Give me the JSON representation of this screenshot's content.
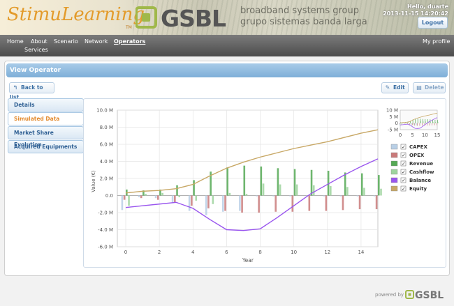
{
  "header": {
    "brand": "StimuLearning",
    "brand_tm": "TM",
    "logo": "GSBL",
    "tagline_1": "broadband systems group",
    "tagline_2": "grupo sistemas banda larga",
    "greeting": "Hello, duarte",
    "datetime": "2013-11-15 14:20:42",
    "logout_label": "Logout"
  },
  "nav": {
    "items": [
      "Home",
      "About",
      "Scenario",
      "Network",
      "Operators",
      "Services"
    ],
    "active": "Operators",
    "profile": "My profile"
  },
  "panel": {
    "title": "View Operator",
    "back_label": "Back to list",
    "edit_label": "Edit",
    "delete_label": "Delete",
    "menu": [
      "Details",
      "Simulated Data",
      "Market Share Evolution",
      "Acquired Equipments"
    ],
    "active_menu": "Simulated Data"
  },
  "colors": {
    "capex": "#b8cfe6",
    "opex": "#c97a7a",
    "revenue": "#55a955",
    "cashflow": "#9ed49e",
    "balance": "#9955ee",
    "equity": "#c8a866"
  },
  "chart_data": {
    "type": "bar",
    "xlabel": "Year",
    "ylabel": "Value (€)",
    "ylim": [
      -6.0,
      10.0
    ],
    "xlim": [
      -0.5,
      15
    ],
    "yticks": [
      "10.0 M",
      "8.0 M",
      "6.0 M",
      "4.0 M",
      "2.0 M",
      "0.0",
      "-2.0 M",
      "-4.0 M",
      "-6.0 M"
    ],
    "xticks": [
      "0",
      "2",
      "4",
      "6",
      "8",
      "10",
      "12",
      "14"
    ],
    "x": [
      0,
      1,
      2,
      3,
      4,
      5,
      6,
      7,
      8,
      9,
      10,
      11,
      12,
      13,
      14,
      15
    ],
    "series": [
      {
        "name": "CAPEX",
        "kind": "bar",
        "values": [
          -1.7,
          -0.2,
          -0.3,
          -0.9,
          -1.8,
          -2.3,
          -1.9,
          -1.8,
          -0.1,
          -0.1,
          -0.1,
          -0.1,
          -0.1,
          -0.1,
          -0.1,
          -0.1
        ]
      },
      {
        "name": "OPEX",
        "kind": "bar",
        "values": [
          -0.5,
          -0.3,
          -0.5,
          -0.8,
          -1.2,
          -1.5,
          -1.8,
          -2.0,
          -2.0,
          -1.9,
          -1.9,
          -1.8,
          -1.8,
          -1.7,
          -1.6,
          -1.6
        ]
      },
      {
        "name": "Revenue",
        "kind": "bar",
        "values": [
          0.7,
          0.6,
          0.7,
          1.2,
          1.8,
          2.8,
          3.3,
          3.5,
          3.4,
          3.2,
          3.1,
          3.0,
          2.9,
          2.7,
          2.6,
          2.4
        ]
      },
      {
        "name": "Cashflow",
        "kind": "bar",
        "values": [
          -1.2,
          0.2,
          0.3,
          -0.2,
          -0.6,
          -1.0,
          0.3,
          0.2,
          1.4,
          1.3,
          1.3,
          1.2,
          1.1,
          1.0,
          0.9,
          0.8
        ]
      },
      {
        "name": "Balance",
        "kind": "line",
        "values": [
          -1.4,
          -1.2,
          -1.0,
          -0.8,
          -1.5,
          -2.8,
          -4.0,
          -4.1,
          -3.9,
          -2.6,
          -1.2,
          0.2,
          1.3,
          2.4,
          3.4,
          4.3
        ]
      },
      {
        "name": "Equity",
        "kind": "line",
        "values": [
          0.3,
          0.5,
          0.6,
          0.8,
          1.3,
          2.3,
          3.2,
          3.9,
          4.5,
          5.0,
          5.5,
          5.9,
          6.3,
          6.8,
          7.3,
          7.7
        ]
      }
    ],
    "legend": [
      "CAPEX",
      "OPEX",
      "Revenue",
      "Cashflow",
      "Balance",
      "Equity"
    ],
    "legend_position": "right",
    "grid": true,
    "overview": {
      "yticks": [
        "10 M",
        "5 M",
        "0",
        "-5 M"
      ],
      "xticks": [
        "0",
        "5",
        "10",
        "15"
      ]
    }
  },
  "footer": {
    "powered_by": "powered by",
    "logo": "GSBL"
  }
}
